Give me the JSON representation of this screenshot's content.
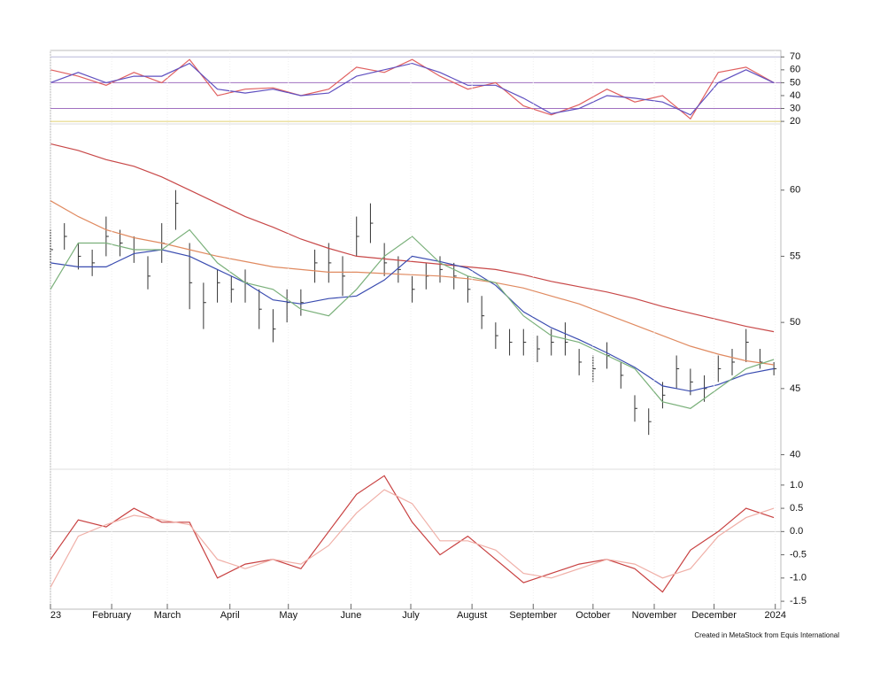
{
  "chart_data": [
    {
      "type": "line",
      "ylim": [
        18,
        75
      ],
      "xlim": [
        0,
        52.5
      ],
      "yticks": [
        20,
        30,
        40,
        50,
        60,
        70
      ],
      "reference_lines": [
        {
          "value": 70,
          "color": "#b8b8d8"
        },
        {
          "value": 50,
          "color": "#a070c0"
        },
        {
          "value": 30,
          "color": "#a070c0"
        },
        {
          "value": 20,
          "color": "#e0d070"
        }
      ],
      "series": [
        {
          "color": "#e06060",
          "x": [
            0,
            2,
            4,
            6,
            8,
            10,
            12,
            14,
            16,
            18,
            20,
            22,
            24,
            26,
            28,
            30,
            32,
            34,
            36,
            38,
            40,
            42,
            44,
            46,
            48,
            50,
            52
          ],
          "values": [
            60,
            55,
            48,
            58,
            50,
            68,
            40,
            45,
            46,
            40,
            45,
            62,
            58,
            68,
            55,
            45,
            50,
            32,
            25,
            33,
            45,
            35,
            40,
            22,
            58,
            62,
            50
          ]
        },
        {
          "color": "#6050c0",
          "x": [
            0,
            2,
            4,
            6,
            8,
            10,
            12,
            14,
            16,
            18,
            20,
            22,
            24,
            26,
            28,
            30,
            32,
            34,
            36,
            38,
            40,
            42,
            44,
            46,
            48,
            50,
            52
          ],
          "values": [
            50,
            58,
            50,
            55,
            55,
            65,
            45,
            42,
            45,
            40,
            42,
            55,
            60,
            65,
            58,
            48,
            48,
            38,
            26,
            30,
            40,
            38,
            35,
            25,
            50,
            60,
            50
          ]
        }
      ]
    },
    {
      "type": "ohlc",
      "ylim": [
        38.9,
        65
      ],
      "xlim": [
        0,
        52.5
      ],
      "yticks": [
        40,
        45,
        50,
        55,
        60
      ],
      "bars": {
        "color": "#333333",
        "x": [
          0,
          1,
          2,
          3,
          4,
          5,
          6,
          7,
          8,
          9,
          10,
          11,
          12,
          13,
          14,
          15,
          16,
          17,
          18,
          19,
          20,
          21,
          22,
          23,
          24,
          25,
          26,
          27,
          28,
          29,
          30,
          31,
          32,
          33,
          34,
          35,
          36,
          37,
          38,
          39,
          40,
          41,
          42,
          43,
          44,
          45,
          46,
          47,
          48,
          49,
          50,
          51,
          52
        ],
        "high": [
          57,
          57.5,
          56,
          55.5,
          58,
          57,
          56.5,
          55,
          57.5,
          60,
          56,
          53,
          54,
          53.5,
          54,
          52.5,
          51,
          52.5,
          52.5,
          55.5,
          56,
          55,
          58,
          59,
          56,
          55,
          53.5,
          54.5,
          55,
          54.5,
          53.5,
          52,
          50,
          49.5,
          49.5,
          49,
          49.5,
          50,
          48,
          47.5,
          48.5,
          47,
          44.5,
          43.5,
          45.5,
          47.5,
          46.5,
          46,
          47.5,
          48,
          49.5,
          48,
          47
        ],
        "low": [
          54,
          55.5,
          54,
          53.5,
          55,
          55,
          54.5,
          52.5,
          54.5,
          57,
          51,
          49.5,
          51.5,
          51.5,
          51.5,
          49.5,
          48.5,
          50,
          50.5,
          53,
          53,
          52,
          55,
          56,
          53.5,
          53,
          51.5,
          52.5,
          53,
          52.5,
          51.5,
          49.5,
          48,
          47.5,
          47.5,
          47,
          47.5,
          47.5,
          46,
          45.5,
          46.5,
          45,
          42.5,
          41.5,
          43.5,
          45,
          44.5,
          44,
          45.5,
          46,
          47,
          46.5,
          46
        ],
        "close": [
          55.5,
          56.5,
          55,
          54.5,
          56.5,
          56,
          55.5,
          53.5,
          56,
          59,
          53,
          51.5,
          53,
          52.5,
          53,
          51,
          49.5,
          51.5,
          51.5,
          54.5,
          54.5,
          53.5,
          56.5,
          57.5,
          54.5,
          54,
          52.5,
          53.5,
          54,
          53.5,
          52.5,
          50.5,
          49,
          48.5,
          48.5,
          48,
          48.5,
          48.5,
          47,
          46.5,
          47.5,
          46,
          43.5,
          42.5,
          44.5,
          46.5,
          45.5,
          45,
          46.5,
          47,
          48.5,
          47,
          46.5
        ]
      },
      "series": [
        {
          "color": "#c84848",
          "x": [
            0,
            2,
            4,
            6,
            8,
            10,
            12,
            14,
            16,
            18,
            20,
            22,
            24,
            26,
            28,
            30,
            32,
            34,
            36,
            38,
            40,
            42,
            44,
            46,
            48,
            50,
            52
          ],
          "values": [
            63.5,
            63.0,
            62.3,
            61.8,
            61.0,
            60.0,
            59.0,
            58.0,
            57.2,
            56.3,
            55.6,
            55.0,
            54.8,
            54.6,
            54.4,
            54.2,
            54.0,
            53.6,
            53.1,
            52.7,
            52.3,
            51.8,
            51.2,
            50.7,
            50.2,
            49.7,
            49.3
          ]
        },
        {
          "color": "#e08a60",
          "x": [
            0,
            2,
            4,
            6,
            8,
            10,
            12,
            14,
            16,
            18,
            20,
            22,
            24,
            26,
            28,
            30,
            32,
            34,
            36,
            38,
            40,
            42,
            44,
            46,
            48,
            50,
            52
          ],
          "values": [
            59.2,
            58.0,
            57.0,
            56.4,
            56.0,
            55.5,
            55.0,
            54.6,
            54.2,
            54.0,
            53.8,
            53.8,
            53.7,
            53.6,
            53.5,
            53.3,
            53.0,
            52.6,
            52.0,
            51.4,
            50.6,
            49.8,
            49.0,
            48.2,
            47.6,
            47.1,
            46.8
          ]
        },
        {
          "color": "#3a4cb0",
          "x": [
            0,
            2,
            4,
            6,
            8,
            10,
            12,
            14,
            16,
            18,
            20,
            22,
            24,
            26,
            28,
            30,
            32,
            34,
            36,
            38,
            40,
            42,
            44,
            46,
            48,
            50,
            52
          ],
          "values": [
            54.5,
            54.2,
            54.2,
            55.2,
            55.5,
            55.0,
            54.0,
            53.0,
            51.7,
            51.4,
            51.8,
            52.0,
            53.2,
            55.0,
            54.6,
            54.1,
            52.8,
            50.8,
            49.6,
            48.7,
            47.7,
            46.6,
            45.2,
            44.8,
            45.3,
            46.1,
            46.5
          ]
        },
        {
          "color": "#7ab07a",
          "x": [
            0,
            2,
            4,
            6,
            8,
            10,
            12,
            14,
            16,
            18,
            20,
            22,
            24,
            26,
            28,
            30,
            32,
            34,
            36,
            38,
            40,
            42,
            44,
            46,
            48,
            50,
            52
          ],
          "values": [
            52.5,
            56,
            56,
            55.5,
            55.5,
            57,
            54.5,
            53,
            52.5,
            51,
            50.5,
            52.5,
            55,
            56.5,
            54.5,
            53.5,
            53,
            50.5,
            49,
            48.5,
            47.5,
            46.5,
            44,
            43.5,
            45,
            46.5,
            47.2
          ]
        }
      ]
    },
    {
      "type": "line",
      "ylim": [
        -1.67,
        1.34
      ],
      "xlim": [
        0,
        52.5
      ],
      "yticks": [
        {
          "value": 1,
          "label": "1.0"
        },
        0.5,
        {
          "value": 0,
          "label": "0.0"
        },
        -0.5,
        {
          "value": -1,
          "label": "-1.0"
        },
        -1.5
      ],
      "reference_lines": [
        {
          "value": 0,
          "color": "#c8c8c8"
        }
      ],
      "xticks": [
        {
          "value": 0,
          "label": "23"
        },
        {
          "value": 4.4,
          "label": "February"
        },
        {
          "value": 8.4,
          "label": "March"
        },
        {
          "value": 12.9,
          "label": "April"
        },
        {
          "value": 17.1,
          "label": "May"
        },
        {
          "value": 21.6,
          "label": "June"
        },
        {
          "value": 25.9,
          "label": "July"
        },
        {
          "value": 30.3,
          "label": "August"
        },
        {
          "value": 34.7,
          "label": "September"
        },
        {
          "value": 39,
          "label": "October"
        },
        {
          "value": 43.4,
          "label": "November"
        },
        {
          "value": 47.7,
          "label": "December"
        },
        {
          "value": 52.1,
          "label": "2024"
        }
      ],
      "footnote": "Created in MetaStock from Equis International",
      "series": [
        {
          "color": "#c84040",
          "x": [
            0,
            2,
            4,
            6,
            8,
            10,
            12,
            14,
            16,
            18,
            20,
            22,
            24,
            26,
            28,
            30,
            32,
            34,
            36,
            38,
            40,
            42,
            44,
            46,
            48,
            50,
            52
          ],
          "values": [
            -0.6,
            0.25,
            0.1,
            0.5,
            0.2,
            0.2,
            -1.0,
            -0.7,
            -0.6,
            -0.8,
            0.0,
            0.8,
            1.2,
            0.2,
            -0.5,
            -0.1,
            -0.6,
            -1.1,
            -0.9,
            -0.7,
            -0.6,
            -0.8,
            -1.3,
            -0.4,
            0.0,
            0.5,
            0.3
          ]
        },
        {
          "color": "#f0b0a8",
          "x": [
            0,
            2,
            4,
            6,
            8,
            10,
            12,
            14,
            16,
            18,
            20,
            22,
            24,
            26,
            28,
            30,
            32,
            34,
            36,
            38,
            40,
            42,
            44,
            46,
            48,
            50,
            52
          ],
          "values": [
            -1.2,
            -0.1,
            0.15,
            0.35,
            0.25,
            0.15,
            -0.6,
            -0.8,
            -0.6,
            -0.7,
            -0.3,
            0.4,
            0.9,
            0.6,
            -0.2,
            -0.2,
            -0.4,
            -0.9,
            -1.0,
            -0.8,
            -0.6,
            -0.7,
            -1.0,
            -0.8,
            -0.1,
            0.3,
            0.5
          ]
        }
      ]
    }
  ]
}
